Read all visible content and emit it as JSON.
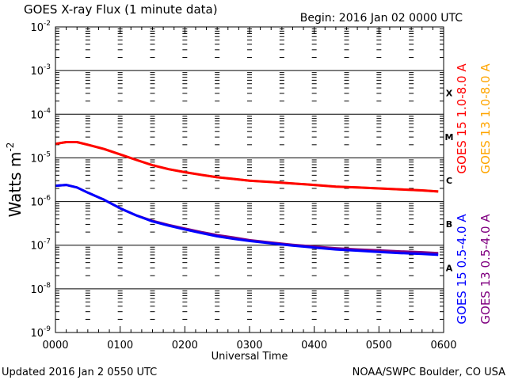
{
  "chart_data": {
    "type": "line",
    "title": "GOES X-ray Flux (1 minute data)",
    "begin_label": "Begin: 2016 Jan 02 0000 UTC",
    "xlabel": "Universal Time",
    "ylabel": "Watts m",
    "ylabel_superscript": "-2",
    "updated_label": "Updated 2016 Jan  2 0550 UTC",
    "credit_label": "NOAA/SWPC Boulder, CO USA",
    "x_unit": "minutes since 0000 UTC",
    "xlim": [
      0,
      360
    ],
    "x_ticks": [
      {
        "value": 0,
        "label": "0000"
      },
      {
        "value": 60,
        "label": "0100"
      },
      {
        "value": 120,
        "label": "0200"
      },
      {
        "value": 180,
        "label": "0300"
      },
      {
        "value": 240,
        "label": "0400"
      },
      {
        "value": 300,
        "label": "0500"
      },
      {
        "value": 360,
        "label": "0600"
      }
    ],
    "y_scale": "log",
    "ylim": [
      1e-09,
      0.01
    ],
    "y_ticks": [
      {
        "exp": -2,
        "base": "10",
        "sup": "-2"
      },
      {
        "exp": -3,
        "base": "10",
        "sup": "-3"
      },
      {
        "exp": -4,
        "base": "10",
        "sup": "-4"
      },
      {
        "exp": -5,
        "base": "10",
        "sup": "-5"
      },
      {
        "exp": -6,
        "base": "10",
        "sup": "-6"
      },
      {
        "exp": -7,
        "base": "10",
        "sup": "-7"
      },
      {
        "exp": -8,
        "base": "10",
        "sup": "-8"
      },
      {
        "exp": -9,
        "base": "10",
        "sup": "-9"
      }
    ],
    "flare_classes": [
      {
        "label": "X",
        "exp": -3
      },
      {
        "label": "M",
        "exp": -4
      },
      {
        "label": "C",
        "exp": -5
      },
      {
        "label": "B",
        "exp": -6
      },
      {
        "label": "A",
        "exp": -7
      }
    ],
    "legend": [
      {
        "text": "GOES 15 1.0-8.0 A",
        "color": "#ff0000"
      },
      {
        "text": "GOES 13 1.0-8.0 A",
        "color": "#ffa500"
      },
      {
        "text": "GOES 15 0.5-4.0 A",
        "color": "#0000ff"
      },
      {
        "text": "GOES 13 0.5-4.0 A",
        "color": "#800080"
      }
    ],
    "series": [
      {
        "name": "GOES 15 1.0-8.0 A",
        "color": "#ff0000",
        "x": [
          0,
          10,
          20,
          30,
          45,
          60,
          75,
          90,
          105,
          120,
          135,
          150,
          165,
          180,
          200,
          220,
          240,
          260,
          280,
          300,
          320,
          340,
          355
        ],
        "y": [
          2.1e-05,
          2.3e-05,
          2.3e-05,
          2e-05,
          1.6e-05,
          1.2e-05,
          9e-06,
          6.8e-06,
          5.5e-06,
          4.7e-06,
          4.1e-06,
          3.6e-06,
          3.3e-06,
          3e-06,
          2.8e-06,
          2.6e-06,
          2.4e-06,
          2.2e-06,
          2.1e-06,
          2e-06,
          1.9e-06,
          1.8e-06,
          1.7e-06
        ]
      },
      {
        "name": "GOES 13 1.0-8.0 A",
        "color": "#ffa500",
        "x": [
          0,
          10,
          20,
          30,
          45,
          60,
          75,
          90,
          105,
          120,
          135,
          150,
          165,
          180,
          200,
          220,
          240,
          260,
          280,
          300,
          320,
          340,
          355
        ],
        "y": [
          2.1e-05,
          2.3e-05,
          2.3e-05,
          2e-05,
          1.6e-05,
          1.2e-05,
          9e-06,
          6.8e-06,
          5.5e-06,
          4.7e-06,
          4.1e-06,
          3.6e-06,
          3.3e-06,
          3e-06,
          2.8e-06,
          2.6e-06,
          2.4e-06,
          2.2e-06,
          2.1e-06,
          2e-06,
          1.9e-06,
          1.8e-06,
          1.7e-06
        ]
      },
      {
        "name": "GOES 15 0.5-4.0 A",
        "color": "#0000ff",
        "x": [
          0,
          10,
          20,
          30,
          45,
          60,
          75,
          90,
          105,
          120,
          135,
          150,
          165,
          180,
          200,
          220,
          240,
          260,
          280,
          300,
          320,
          340,
          355
        ],
        "y": [
          2.3e-06,
          2.4e-06,
          2.1e-06,
          1.6e-06,
          1.1e-06,
          7e-07,
          4.8e-07,
          3.5e-07,
          2.8e-07,
          2.3e-07,
          1.9e-07,
          1.6e-07,
          1.4e-07,
          1.25e-07,
          1.1e-07,
          9.8e-08,
          8.8e-08,
          8e-08,
          7.5e-08,
          7e-08,
          6.6e-08,
          6.3e-08,
          6e-08
        ]
      },
      {
        "name": "GOES 13 0.5-4.0 A",
        "color": "#800080",
        "x": [
          0,
          10,
          20,
          30,
          45,
          60,
          75,
          90,
          105,
          120,
          135,
          150,
          165,
          180,
          200,
          220,
          240,
          260,
          280,
          300,
          320,
          340,
          355
        ],
        "y": [
          2.3e-06,
          2.4e-06,
          2.1e-06,
          1.6e-06,
          1.1e-06,
          7e-07,
          4.8e-07,
          3.6e-07,
          2.9e-07,
          2.4e-07,
          2e-07,
          1.7e-07,
          1.5e-07,
          1.3e-07,
          1.15e-07,
          1.02e-07,
          9.3e-08,
          8.5e-08,
          8e-08,
          7.6e-08,
          7.2e-08,
          6.9e-08,
          6.6e-08
        ]
      }
    ]
  }
}
